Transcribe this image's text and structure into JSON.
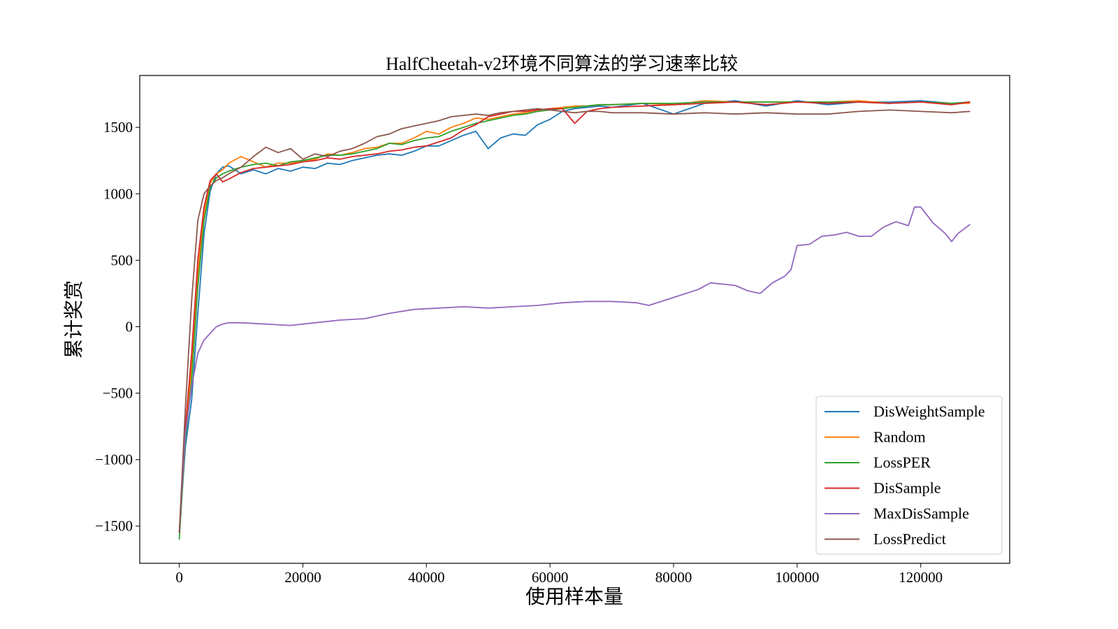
{
  "chart_data": {
    "type": "line",
    "title": "HalfCheetah-v2环境不同算法的学习速率比较",
    "xlabel": "使用样本量",
    "ylabel": "累计奖赏",
    "xlim": [
      -6400,
      134400
    ],
    "ylim": [
      -1780,
      1890
    ],
    "xticks": [
      0,
      20000,
      40000,
      60000,
      80000,
      100000,
      120000
    ],
    "xtick_labels": [
      "0",
      "20000",
      "40000",
      "60000",
      "80000",
      "100000",
      "120000"
    ],
    "yticks": [
      -1500,
      -1000,
      -500,
      0,
      500,
      1000,
      1500
    ],
    "ytick_labels": [
      "−1500",
      "−1000",
      "−500",
      "0",
      "500",
      "1000",
      "1500"
    ],
    "grid": false,
    "legend_position": "lower-right",
    "series": [
      {
        "name": "DisWeightSample",
        "color": "#1f77b4",
        "x": [
          0,
          1000,
          2000,
          3000,
          4000,
          5000,
          6000,
          7000,
          8000,
          10000,
          12000,
          14000,
          16000,
          18000,
          20000,
          22000,
          24000,
          26000,
          28000,
          30000,
          32000,
          34000,
          36000,
          38000,
          40000,
          42000,
          44000,
          46000,
          48000,
          50000,
          52000,
          54000,
          56000,
          58000,
          60000,
          62000,
          64000,
          66000,
          68000,
          70000,
          75000,
          80000,
          85000,
          90000,
          95000,
          100000,
          105000,
          110000,
          115000,
          120000,
          125000,
          128000
        ],
        "y": [
          -1550,
          -900,
          -550,
          100,
          700,
          1020,
          1150,
          1200,
          1210,
          1150,
          1180,
          1150,
          1190,
          1170,
          1200,
          1190,
          1230,
          1220,
          1250,
          1270,
          1290,
          1300,
          1290,
          1320,
          1360,
          1360,
          1400,
          1440,
          1470,
          1340,
          1420,
          1450,
          1440,
          1520,
          1560,
          1620,
          1640,
          1650,
          1660,
          1650,
          1680,
          1600,
          1680,
          1700,
          1660,
          1700,
          1670,
          1690,
          1690,
          1700,
          1680,
          1690
        ]
      },
      {
        "name": "Random",
        "color": "#ff7f0e",
        "x": [
          0,
          1000,
          2000,
          3000,
          4000,
          5000,
          6000,
          7000,
          8000,
          10000,
          12000,
          14000,
          16000,
          18000,
          20000,
          22000,
          24000,
          26000,
          28000,
          30000,
          32000,
          34000,
          36000,
          38000,
          40000,
          42000,
          44000,
          46000,
          48000,
          50000,
          52000,
          54000,
          56000,
          58000,
          60000,
          62000,
          64000,
          66000,
          68000,
          70000,
          75000,
          80000,
          85000,
          90000,
          95000,
          100000,
          105000,
          110000,
          115000,
          120000,
          125000,
          128000
        ],
        "y": [
          -1550,
          -800,
          -300,
          400,
          850,
          1080,
          1150,
          1180,
          1230,
          1280,
          1240,
          1200,
          1230,
          1230,
          1250,
          1260,
          1300,
          1290,
          1310,
          1340,
          1350,
          1380,
          1380,
          1420,
          1470,
          1450,
          1500,
          1530,
          1570,
          1560,
          1580,
          1600,
          1610,
          1630,
          1640,
          1650,
          1660,
          1660,
          1670,
          1670,
          1680,
          1670,
          1700,
          1690,
          1690,
          1690,
          1690,
          1700,
          1680,
          1690,
          1680,
          1680
        ]
      },
      {
        "name": "LossPER",
        "color": "#2ca02c",
        "x": [
          0,
          1000,
          2000,
          3000,
          4000,
          5000,
          6000,
          7000,
          8000,
          10000,
          12000,
          14000,
          16000,
          18000,
          20000,
          22000,
          24000,
          26000,
          28000,
          30000,
          32000,
          34000,
          36000,
          38000,
          40000,
          42000,
          44000,
          46000,
          48000,
          50000,
          52000,
          54000,
          56000,
          58000,
          60000,
          62000,
          64000,
          66000,
          68000,
          70000,
          75000,
          80000,
          85000,
          90000,
          95000,
          100000,
          105000,
          110000,
          115000,
          120000,
          125000,
          128000
        ],
        "y": [
          -1600,
          -850,
          -400,
          300,
          800,
          1050,
          1120,
          1150,
          1170,
          1200,
          1220,
          1230,
          1210,
          1240,
          1250,
          1270,
          1290,
          1290,
          1300,
          1320,
          1340,
          1380,
          1370,
          1400,
          1420,
          1430,
          1470,
          1500,
          1530,
          1550,
          1570,
          1590,
          1600,
          1620,
          1630,
          1640,
          1650,
          1660,
          1670,
          1670,
          1680,
          1680,
          1690,
          1690,
          1690,
          1690,
          1690,
          1690,
          1680,
          1690,
          1680,
          1690
        ]
      },
      {
        "name": "DisSample",
        "color": "#d62728",
        "x": [
          0,
          1000,
          2000,
          3000,
          4000,
          5000,
          6000,
          7000,
          8000,
          10000,
          12000,
          14000,
          16000,
          18000,
          20000,
          22000,
          24000,
          26000,
          28000,
          30000,
          32000,
          34000,
          36000,
          38000,
          40000,
          42000,
          44000,
          46000,
          48000,
          50000,
          52000,
          54000,
          56000,
          58000,
          60000,
          62000,
          64000,
          66000,
          68000,
          70000,
          75000,
          80000,
          85000,
          90000,
          95000,
          100000,
          105000,
          110000,
          115000,
          120000,
          125000,
          128000
        ],
        "y": [
          -1550,
          -750,
          -200,
          500,
          900,
          1100,
          1150,
          1090,
          1110,
          1160,
          1190,
          1200,
          1210,
          1220,
          1240,
          1250,
          1270,
          1260,
          1280,
          1290,
          1300,
          1320,
          1330,
          1350,
          1360,
          1390,
          1420,
          1480,
          1520,
          1580,
          1600,
          1620,
          1620,
          1630,
          1640,
          1640,
          1530,
          1620,
          1640,
          1650,
          1660,
          1670,
          1680,
          1690,
          1670,
          1690,
          1680,
          1690,
          1680,
          1690,
          1670,
          1690
        ]
      },
      {
        "name": "MaxDisSample",
        "color": "#9467bd",
        "x": [
          0,
          1000,
          2000,
          3000,
          4000,
          5000,
          6000,
          7000,
          8000,
          10000,
          14000,
          18000,
          22000,
          26000,
          30000,
          34000,
          38000,
          42000,
          46000,
          50000,
          54000,
          58000,
          62000,
          66000,
          70000,
          74000,
          76000,
          80000,
          84000,
          86000,
          90000,
          92000,
          94000,
          96000,
          98000,
          99000,
          100000,
          102000,
          104000,
          106000,
          108000,
          110000,
          112000,
          114000,
          116000,
          118000,
          119000,
          120000,
          122000,
          124000,
          125000,
          126000,
          128000
        ],
        "y": [
          -1550,
          -800,
          -450,
          -200,
          -100,
          -50,
          0,
          20,
          30,
          30,
          20,
          10,
          30,
          50,
          60,
          100,
          130,
          140,
          150,
          140,
          150,
          160,
          180,
          190,
          190,
          180,
          160,
          220,
          280,
          330,
          310,
          270,
          250,
          330,
          380,
          430,
          610,
          620,
          680,
          690,
          710,
          680,
          680,
          750,
          790,
          760,
          900,
          900,
          780,
          700,
          640,
          700,
          770
        ]
      },
      {
        "name": "LossPredict",
        "color": "#8c564b",
        "x": [
          0,
          1000,
          2000,
          3000,
          4000,
          5000,
          6000,
          7000,
          8000,
          10000,
          12000,
          14000,
          16000,
          18000,
          20000,
          22000,
          24000,
          26000,
          28000,
          30000,
          32000,
          34000,
          36000,
          38000,
          40000,
          42000,
          44000,
          46000,
          48000,
          50000,
          52000,
          54000,
          56000,
          58000,
          60000,
          62000,
          64000,
          66000,
          68000,
          70000,
          75000,
          80000,
          85000,
          90000,
          95000,
          100000,
          105000,
          110000,
          115000,
          120000,
          125000,
          128000
        ],
        "y": [
          -1550,
          -600,
          200,
          800,
          1000,
          1060,
          1100,
          1120,
          1150,
          1200,
          1280,
          1350,
          1310,
          1340,
          1260,
          1300,
          1280,
          1320,
          1340,
          1380,
          1430,
          1450,
          1490,
          1510,
          1530,
          1550,
          1580,
          1590,
          1600,
          1590,
          1610,
          1620,
          1630,
          1640,
          1630,
          1620,
          1610,
          1620,
          1620,
          1610,
          1610,
          1600,
          1610,
          1600,
          1610,
          1600,
          1600,
          1620,
          1630,
          1620,
          1610,
          1620
        ]
      }
    ]
  }
}
